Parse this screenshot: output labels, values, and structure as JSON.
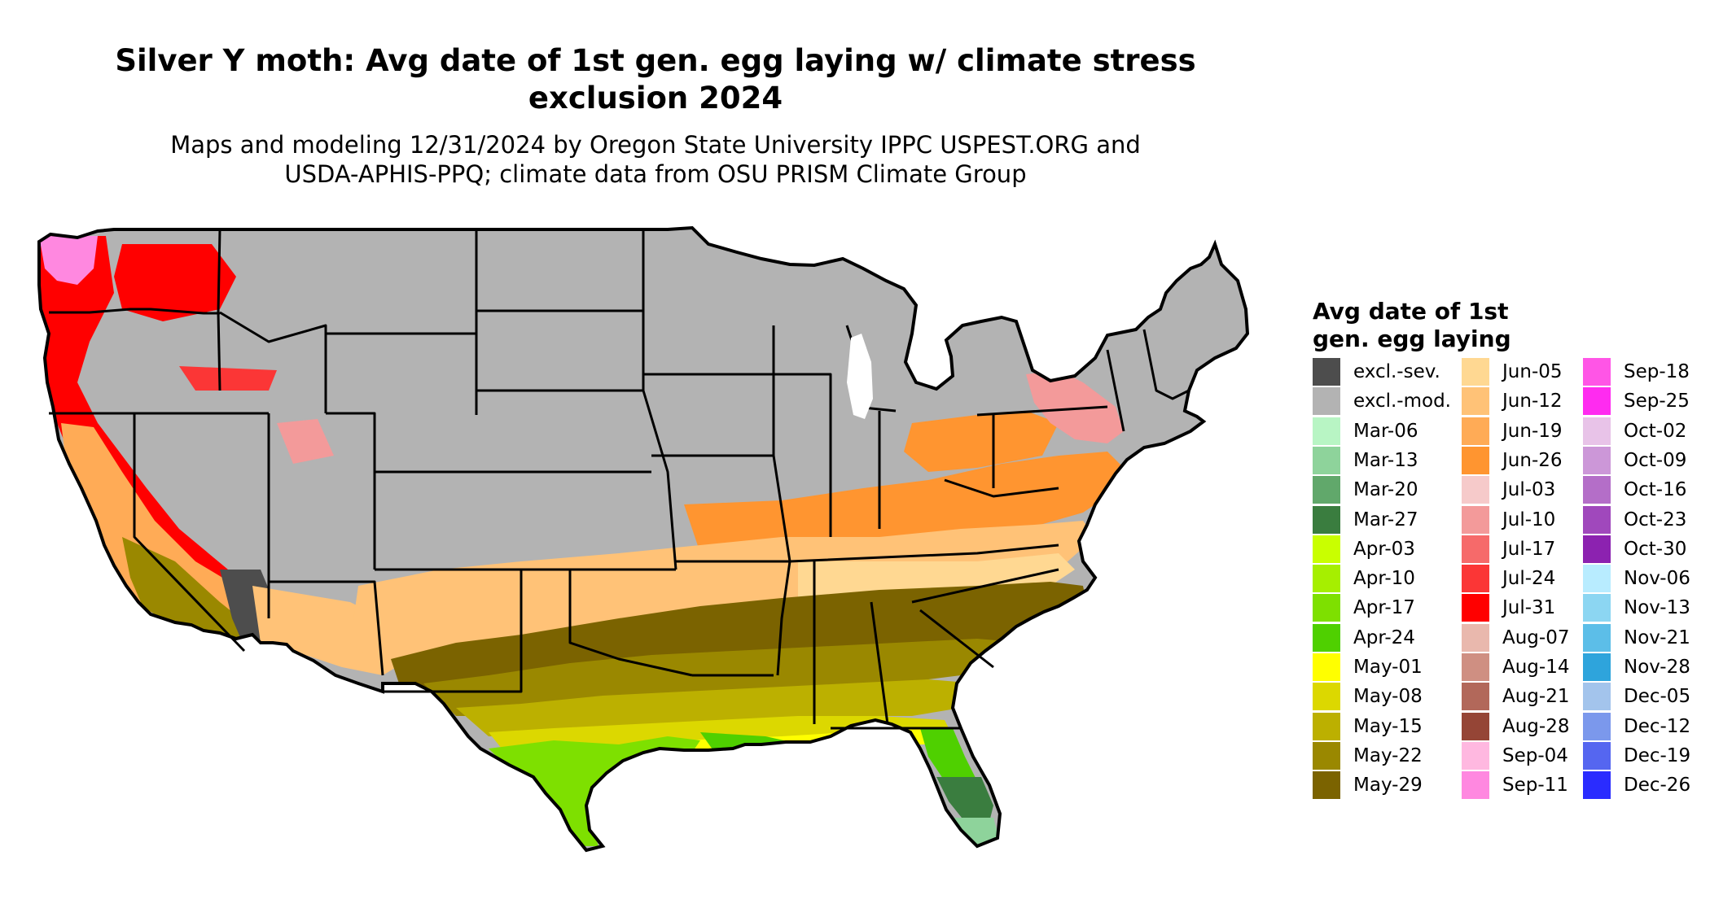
{
  "title_line1": "Silver Y moth: Avg date of 1st gen. egg laying w/ climate stress",
  "title_line2": "exclusion 2024",
  "subtitle_line1": "Maps and modeling 12/31/2024 by Oregon State University IPPC USPEST.ORG and",
  "subtitle_line2": "USDA-APHIS-PPQ; climate data from OSU PRISM Climate Group",
  "legend": {
    "title_line1": "Avg date of 1st",
    "title_line2": "gen. egg laying",
    "columns": [
      [
        {
          "label": "excl.-sev.",
          "color": "#4d4d4d"
        },
        {
          "label": "excl.-mod.",
          "color": "#b3b3b3"
        },
        {
          "label": "Mar-06",
          "color": "#b8f5c4"
        },
        {
          "label": "Mar-13",
          "color": "#8ed39b"
        },
        {
          "label": "Mar-20",
          "color": "#61a86b"
        },
        {
          "label": "Mar-27",
          "color": "#3a7d3f"
        },
        {
          "label": "Apr-03",
          "color": "#c9ff00"
        },
        {
          "label": "Apr-10",
          "color": "#a6ef00"
        },
        {
          "label": "Apr-17",
          "color": "#7ee000"
        },
        {
          "label": "Apr-24",
          "color": "#4fd000"
        },
        {
          "label": "May-01",
          "color": "#ffff00"
        },
        {
          "label": "May-08",
          "color": "#dcd800"
        },
        {
          "label": "May-15",
          "color": "#bcb000"
        },
        {
          "label": "May-22",
          "color": "#9a8800"
        },
        {
          "label": "May-29",
          "color": "#7b6300"
        }
      ],
      [
        {
          "label": "Jun-05",
          "color": "#ffd892"
        },
        {
          "label": "Jun-12",
          "color": "#ffc277"
        },
        {
          "label": "Jun-19",
          "color": "#ffab56"
        },
        {
          "label": "Jun-26",
          "color": "#ff9530"
        },
        {
          "label": "Jul-03",
          "color": "#f6caca"
        },
        {
          "label": "Jul-10",
          "color": "#f39a9a"
        },
        {
          "label": "Jul-17",
          "color": "#f66a6a"
        },
        {
          "label": "Jul-24",
          "color": "#fb3636"
        },
        {
          "label": "Jul-31",
          "color": "#ff0000"
        },
        {
          "label": "Aug-07",
          "color": "#e9b8ad"
        },
        {
          "label": "Aug-14",
          "color": "#cf8f82"
        },
        {
          "label": "Aug-21",
          "color": "#b2685a"
        },
        {
          "label": "Aug-28",
          "color": "#954536"
        },
        {
          "label": "Sep-04",
          "color": "#ffb8e0"
        },
        {
          "label": "Sep-11",
          "color": "#ff88e0"
        }
      ],
      [
        {
          "label": "Sep-18",
          "color": "#ff55e6"
        },
        {
          "label": "Sep-25",
          "color": "#ff2bf0"
        },
        {
          "label": "Oct-02",
          "color": "#e8c3e8"
        },
        {
          "label": "Oct-09",
          "color": "#cc97d8"
        },
        {
          "label": "Oct-16",
          "color": "#b46ec8"
        },
        {
          "label": "Oct-23",
          "color": "#a048bc"
        },
        {
          "label": "Oct-30",
          "color": "#8c22b0"
        },
        {
          "label": "Nov-06",
          "color": "#b8ecff"
        },
        {
          "label": "Nov-13",
          "color": "#8cd6f2"
        },
        {
          "label": "Nov-21",
          "color": "#5cbee8"
        },
        {
          "label": "Nov-28",
          "color": "#2ea4dc"
        },
        {
          "label": "Dec-05",
          "color": "#a3c4ec"
        },
        {
          "label": "Dec-12",
          "color": "#7b98ec"
        },
        {
          "label": "Dec-19",
          "color": "#5566f0"
        },
        {
          "label": "Dec-26",
          "color": "#2a2cff"
        }
      ]
    ]
  },
  "map": {
    "background_color": "#b3b3b3",
    "border_color": "#000000"
  }
}
